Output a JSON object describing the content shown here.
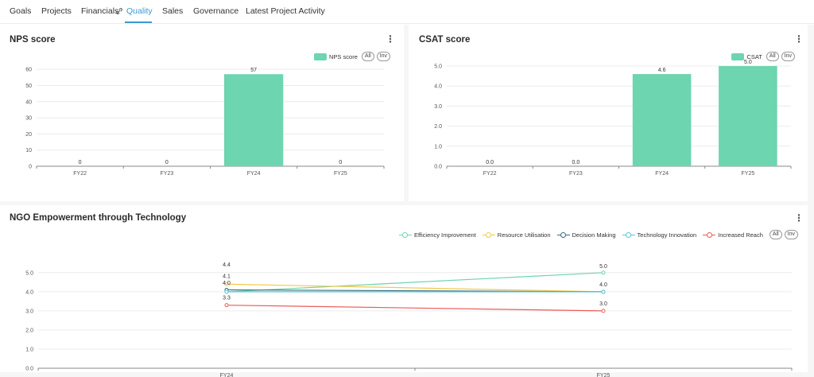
{
  "tabs": [
    {
      "label": "Goals",
      "active": false
    },
    {
      "label": "Projects",
      "active": false
    },
    {
      "label": "Financials",
      "active": false
    },
    {
      "label": "Quality",
      "active": true
    },
    {
      "label": "Sales",
      "active": false
    },
    {
      "label": "Governance",
      "active": false
    },
    {
      "label": "Latest Project Activity",
      "active": false
    }
  ],
  "colors": {
    "accent": "#3a9bd1",
    "bar": "#6dd5b0",
    "efficiency": "#6dd5b0",
    "resource": "#f2c94c",
    "decision": "#2f6f7e",
    "technology": "#5bc6d6",
    "reach": "#ee5a5a"
  },
  "nps": {
    "title": "NPS score",
    "legend_label": "NPS score",
    "all_label": "All",
    "inv_label": "Inv"
  },
  "csat": {
    "title": "CSAT score",
    "legend_label": "CSAT",
    "all_label": "All",
    "inv_label": "Inv"
  },
  "ngo": {
    "title": "NGO Empowerment through Technology",
    "all_label": "All",
    "inv_label": "Inv"
  },
  "chart_data": [
    {
      "id": "nps",
      "type": "bar",
      "title": "NPS score",
      "categories": [
        "FY22",
        "FY23",
        "FY24",
        "FY25"
      ],
      "values": [
        0,
        0,
        57,
        0
      ],
      "data_labels": [
        "0",
        "0",
        "57",
        "0"
      ],
      "yticks": [
        "0",
        "10",
        "20",
        "30",
        "40",
        "50",
        "60"
      ],
      "ylim": [
        0,
        65
      ],
      "legend": [
        "NPS score"
      ],
      "legend_position": "top-right",
      "grid": true
    },
    {
      "id": "csat",
      "type": "bar",
      "title": "CSAT score",
      "categories": [
        "FY22",
        "FY23",
        "FY24",
        "FY25"
      ],
      "values": [
        0.0,
        0.0,
        4.6,
        5.0
      ],
      "data_labels": [
        "0.0",
        "0.0",
        "4.6",
        "5.0"
      ],
      "yticks": [
        "0.0",
        "1.0",
        "2.0",
        "3.0",
        "4.0",
        "5.0"
      ],
      "ylim": [
        0,
        5.2
      ],
      "legend": [
        "CSAT"
      ],
      "legend_position": "top-right",
      "grid": true
    },
    {
      "id": "ngo",
      "type": "line",
      "title": "NGO Empowerment through Technology",
      "categories": [
        "FY24",
        "FY25"
      ],
      "yticks": [
        "0.0",
        "1.0",
        "2.0",
        "3.0",
        "4.0",
        "5.0"
      ],
      "ylim": [
        0,
        5.2
      ],
      "legend_position": "top-right",
      "grid": true,
      "series": [
        {
          "name": "Efficiency Improvement",
          "values": [
            4.0,
            5.0
          ],
          "labels": [
            "4.0",
            "5.0"
          ],
          "color_key": "efficiency"
        },
        {
          "name": "Resource Utilisation",
          "values": [
            4.4,
            4.0
          ],
          "labels": [
            "4.4",
            ""
          ],
          "color_key": "resource"
        },
        {
          "name": "Decision Making",
          "values": [
            4.1,
            4.0
          ],
          "labels": [
            "4.1",
            ""
          ],
          "color_key": "decision"
        },
        {
          "name": "Technology Innovation",
          "values": [
            4.0,
            4.0
          ],
          "labels": [
            "",
            "4.0"
          ],
          "color_key": "technology"
        },
        {
          "name": "Increased Reach",
          "values": [
            3.3,
            3.0
          ],
          "labels": [
            "3.3",
            "3.0"
          ],
          "color_key": "reach"
        }
      ]
    }
  ]
}
